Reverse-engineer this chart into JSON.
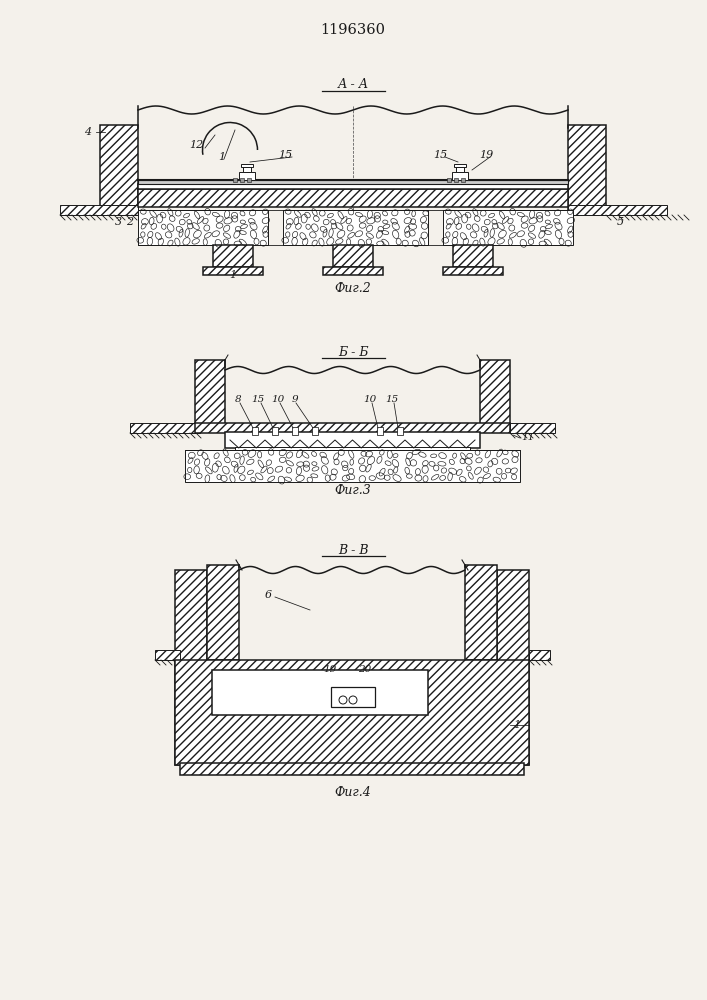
{
  "title": "1196360",
  "fig2_label": "А - А",
  "fig3_label": "Б - Б",
  "fig4_label": "В - В",
  "caption2": "Фиг.2",
  "caption3": "Фиг.3",
  "caption4": "Фиг.4",
  "lc": "#1a1a1a",
  "bg": "#f4f1eb"
}
